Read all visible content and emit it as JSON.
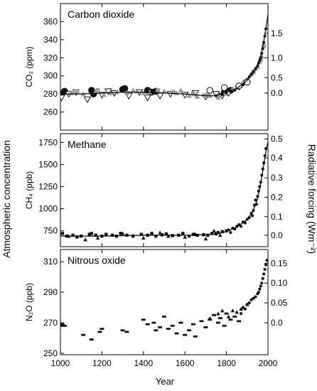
{
  "figure": {
    "left_label": "Atmospheric concentration",
    "right_label": "Radiative forcing (Wm⁻²)",
    "xlabel": "Year",
    "xlim": [
      1000,
      2000
    ],
    "x_ticks": [
      1000,
      1200,
      1400,
      1600,
      1800,
      2000
    ]
  },
  "chart_data": [
    {
      "type": "scatter",
      "title": "Carbon dioxide",
      "ylabel": "CO₂ (ppm)",
      "ylim": [
        240,
        380
      ],
      "y_ticks": [
        260,
        280,
        300,
        320,
        340,
        360
      ],
      "right_axis": {
        "label": "Radiative forcing (Wm⁻²)",
        "ticks": [
          0.0,
          0.5,
          1.0,
          1.5
        ],
        "tick_labels": [
          "0.0",
          "0.5",
          "1.0",
          "1.5"
        ],
        "values_at_left": [
          281,
          298,
          320,
          347
        ]
      },
      "colors": {
        "dark": "#111111",
        "grey": "#9a9a9a"
      },
      "series": [
        {
          "marker": "filled-circle",
          "x": [
            1010,
            1020,
            1150,
            1160,
            1300,
            1310,
            1420,
            1440,
            1460,
            1790,
            1800,
            1820
          ],
          "y": [
            281,
            283,
            284,
            280,
            285,
            286,
            284,
            282,
            283,
            282,
            283,
            284
          ]
        },
        {
          "marker": "open-triangle-down",
          "x": [
            1005,
            1040,
            1075,
            1130,
            1200,
            1230,
            1260,
            1330,
            1380,
            1420,
            1480,
            1530,
            1600,
            1650,
            1700,
            1750,
            1780,
            1810
          ],
          "y": [
            276,
            280,
            282,
            274,
            279,
            283,
            281,
            278,
            282,
            276,
            278,
            280,
            279,
            281,
            277,
            280,
            278,
            281
          ]
        },
        {
          "marker": "grey-triangle",
          "x": [
            1050,
            1060,
            1110,
            1170,
            1210,
            1240,
            1270,
            1350,
            1370,
            1400,
            1430,
            1500,
            1550,
            1560,
            1580,
            1620,
            1660,
            1690,
            1720,
            1760,
            1790,
            1830,
            1860,
            1880,
            1900,
            1920,
            1940,
            1950,
            1960,
            1970
          ],
          "y": [
            281,
            282,
            280,
            283,
            279,
            281,
            282,
            284,
            283,
            281,
            282,
            283,
            282,
            281,
            284,
            278,
            277,
            279,
            278,
            276,
            280,
            286,
            290,
            293,
            296,
            302,
            308,
            310,
            316,
            322
          ]
        },
        {
          "marker": "grey-square",
          "x": [
            1080,
            1180,
            1320,
            1470,
            1540,
            1640,
            1710,
            1770,
            1850,
            1890,
            1930,
            1965,
            1980
          ],
          "y": [
            283,
            284,
            281,
            284,
            282,
            280,
            279,
            278,
            287,
            294,
            304,
            318,
            333
          ]
        },
        {
          "marker": "small-dot",
          "x": [
            1750,
            1780,
            1800,
            1820,
            1840,
            1860,
            1870,
            1880,
            1890,
            1900,
            1910,
            1920,
            1930,
            1940,
            1950,
            1955,
            1960,
            1965,
            1970,
            1975,
            1980,
            1985,
            1990
          ],
          "y": [
            278,
            279,
            282,
            283,
            284,
            286,
            288,
            290,
            292,
            296,
            299,
            302,
            305,
            308,
            311,
            314,
            317,
            320,
            325,
            330,
            337,
            344,
            352
          ]
        },
        {
          "marker": "open-circle",
          "x": [
            1720,
            1790,
            1860,
            1900
          ],
          "y": [
            284,
            287,
            289,
            293
          ]
        }
      ],
      "line": {
        "x": [
          1000,
          1100,
          1200,
          1300,
          1400,
          1500,
          1600,
          1700,
          1750,
          1800,
          1850,
          1900,
          1925,
          1950,
          1970,
          1990,
          2000
        ],
        "y": [
          280,
          280,
          281,
          282,
          282,
          281,
          280,
          278,
          278,
          282,
          286,
          295,
          302,
          311,
          326,
          352,
          368
        ]
      }
    },
    {
      "type": "scatter",
      "title": "Methane",
      "ylabel": "CH₄ (ppb)",
      "ylim": [
        570,
        1850
      ],
      "y_ticks": [
        750,
        1000,
        1250,
        1500,
        1750
      ],
      "right_axis": {
        "label": "Radiative forcing (Wm⁻²)",
        "ticks": [
          0.0,
          0.1,
          0.2,
          0.3,
          0.4,
          0.5
        ],
        "tick_labels": [
          "0.0",
          "0.1",
          "0.2",
          "0.3",
          "0.4",
          "0.5"
        ],
        "values_at_left": [
          700,
          910,
          1130,
          1350,
          1575,
          1790
        ]
      },
      "series": [
        {
          "marker": "filled-square",
          "x": [
            1010,
            1030,
            1060,
            1080,
            1100,
            1140,
            1150,
            1170,
            1200,
            1220,
            1250,
            1270,
            1290,
            1320,
            1350,
            1390,
            1420,
            1440,
            1460,
            1490,
            1510,
            1540,
            1570,
            1590,
            1620,
            1640,
            1660,
            1690,
            1710,
            1730,
            1750,
            1760,
            1780,
            1800
          ],
          "y": [
            720,
            690,
            700,
            680,
            690,
            710,
            720,
            700,
            690,
            710,
            700,
            690,
            720,
            700,
            690,
            710,
            700,
            720,
            690,
            705,
            715,
            695,
            700,
            720,
            690,
            710,
            700,
            705,
            700,
            720,
            715,
            730,
            740,
            750
          ]
        },
        {
          "marker": "filled-triangle",
          "x": [
            1040,
            1120,
            1180,
            1300,
            1400,
            1480,
            1520,
            1600,
            1650,
            1700,
            1740,
            1770
          ],
          "y": [
            690,
            650,
            670,
            720,
            670,
            730,
            690,
            680,
            710,
            660,
            750,
            700
          ]
        },
        {
          "marker": "filled-dot",
          "x": [
            1810,
            1820,
            1830,
            1840,
            1850,
            1860,
            1870,
            1880,
            1890,
            1900,
            1910,
            1920,
            1925,
            1930,
            1935,
            1940,
            1945,
            1950,
            1955,
            1960,
            1965,
            1970,
            1975,
            1980,
            1985,
            1990
          ],
          "y": [
            760,
            730,
            780,
            770,
            800,
            820,
            800,
            850,
            840,
            880,
            900,
            950,
            920,
            980,
            1040,
            1100,
            1050,
            1140,
            1200,
            1250,
            1300,
            1380,
            1450,
            1520,
            1600,
            1680
          ]
        }
      ],
      "line": {
        "x": [
          1000,
          1100,
          1200,
          1300,
          1400,
          1500,
          1600,
          1700,
          1750,
          1800,
          1850,
          1900,
          1925,
          1950,
          1970,
          1990,
          2000
        ],
        "y": [
          690,
          690,
          690,
          695,
          700,
          700,
          700,
          705,
          715,
          740,
          790,
          880,
          960,
          1110,
          1350,
          1650,
          1760
        ]
      }
    },
    {
      "type": "scatter",
      "title": "Nitrous oxide",
      "ylabel": "N₂O (ppb)",
      "ylim": [
        249,
        318
      ],
      "y_ticks": [
        250,
        270,
        290,
        310
      ],
      "right_axis": {
        "label": "Radiative forcing (Wm⁻²)",
        "ticks": [
          0.0,
          0.05,
          0.1,
          0.15
        ],
        "tick_labels": [
          "0.0",
          "0.05",
          "0.10",
          "0.15"
        ],
        "values_at_left": [
          270,
          283,
          296,
          309
        ]
      },
      "series": [
        {
          "marker": "filled-dash",
          "x": [
            1000,
            1010,
            1020,
            1110,
            1150,
            1190,
            1200,
            1300,
            1320,
            1400,
            1420,
            1450,
            1460,
            1480,
            1500,
            1520,
            1540,
            1560,
            1580,
            1600,
            1620,
            1640,
            1650,
            1680,
            1700,
            1720,
            1740,
            1760,
            1770,
            1790,
            1800,
            1820,
            1840,
            1860
          ],
          "y": [
            268,
            269,
            268,
            262,
            259,
            264,
            266,
            265,
            264,
            272,
            269,
            270,
            265,
            267,
            274,
            266,
            268,
            263,
            270,
            262,
            265,
            269,
            261,
            271,
            267,
            272,
            275,
            270,
            273,
            268,
            276,
            272,
            274,
            271
          ]
        },
        {
          "marker": "filled-triangle",
          "x": [
            1720,
            1760,
            1780,
            1810,
            1830,
            1850,
            1870,
            1880,
            1900
          ],
          "y": [
            273,
            276,
            278,
            274,
            278,
            277,
            279,
            280,
            282
          ]
        },
        {
          "marker": "filled-dot",
          "x": [
            1870,
            1880,
            1890,
            1900,
            1910,
            1920,
            1930,
            1940,
            1950,
            1955,
            1960,
            1965,
            1970,
            1975,
            1980,
            1985,
            1990,
            1995
          ],
          "y": [
            276,
            280,
            279,
            282,
            283,
            285,
            286,
            287,
            289,
            290,
            292,
            294,
            296,
            299,
            302,
            305,
            308,
            311
          ]
        }
      ]
    }
  ]
}
